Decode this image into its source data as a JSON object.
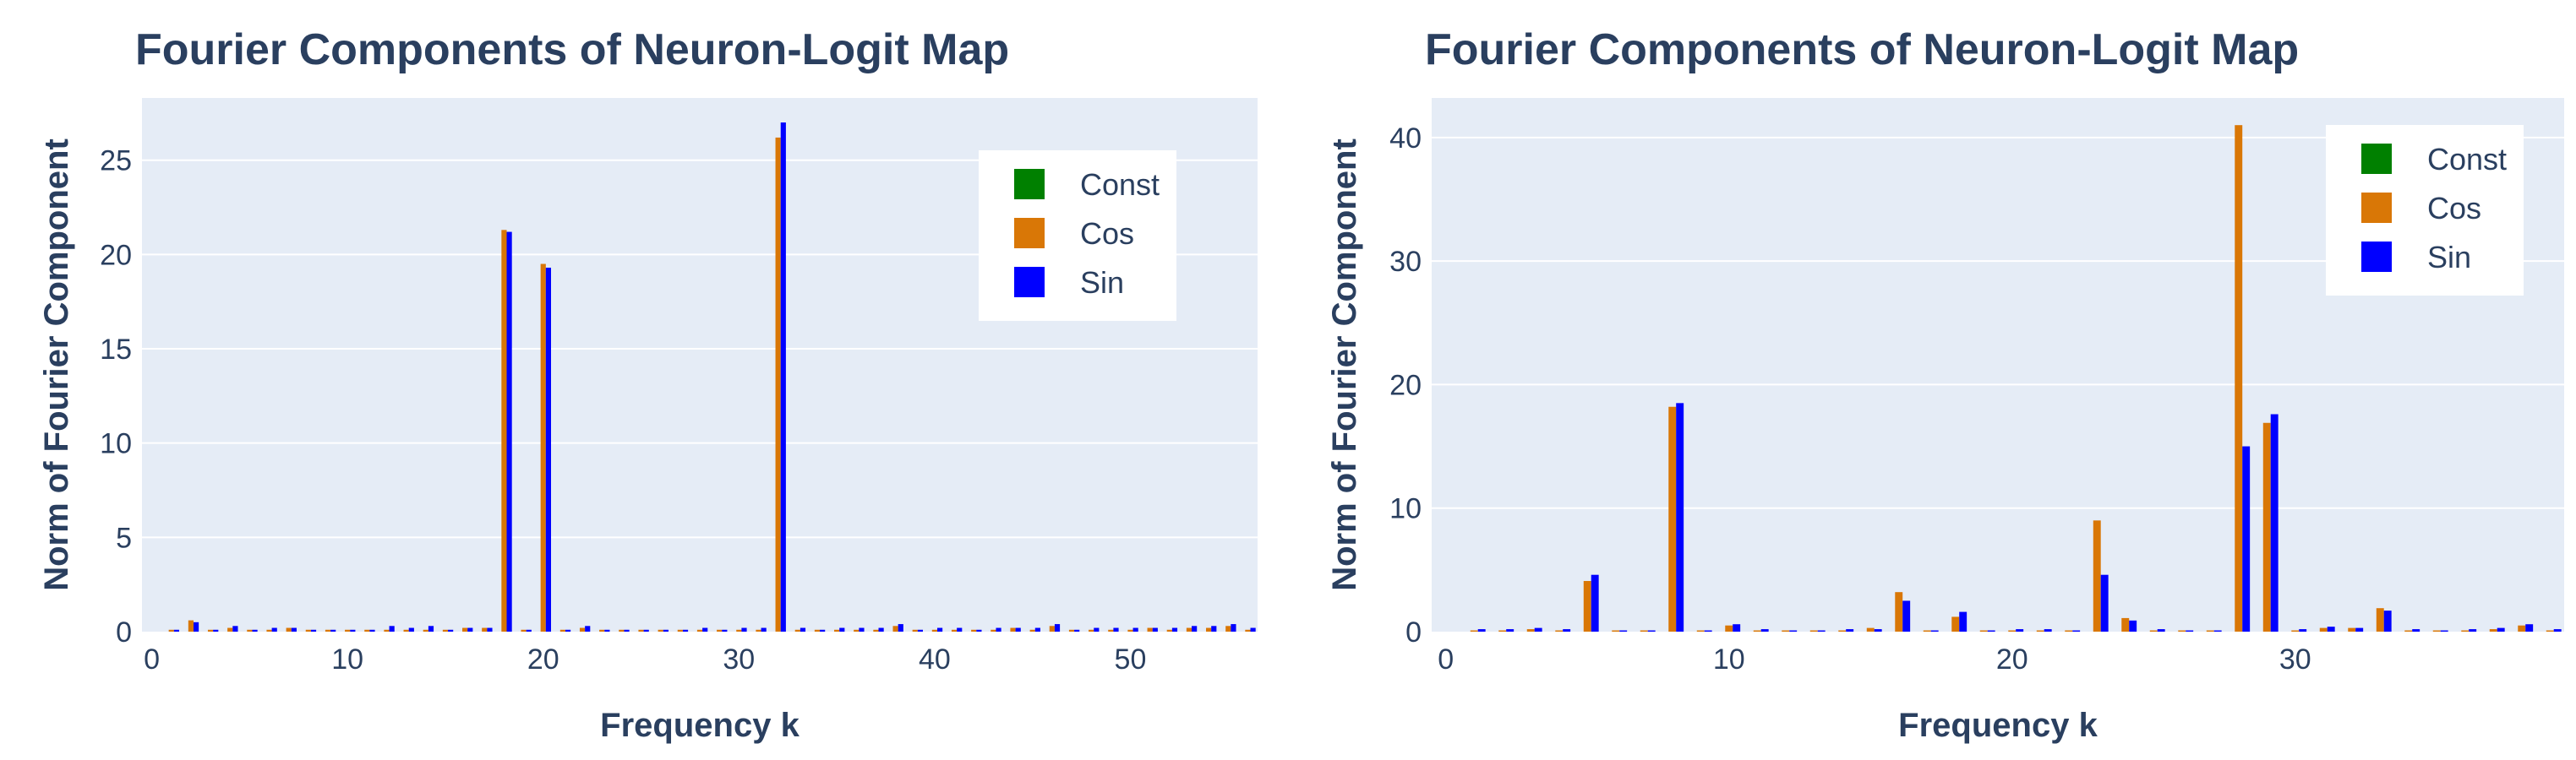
{
  "colors": {
    "const": "#008000",
    "cos": "#d97706",
    "sin": "#0000ff",
    "plot_bg": "#e5ecf6",
    "grid": "#ffffff",
    "text": "#2a3f5f"
  },
  "chart_data": [
    {
      "type": "bar",
      "title": "Fourier Components of Neuron-Logit Map",
      "xlabel": "Frequency k",
      "ylabel": "Norm of Fourier Component",
      "xlim": [
        -0.5,
        56.5
      ],
      "ylim": [
        0,
        28.3
      ],
      "xticks": [
        0,
        10,
        20,
        30,
        40,
        50
      ],
      "yticks": [
        0,
        5,
        10,
        15,
        20,
        25
      ],
      "grid": true,
      "legend_position": "top-right",
      "legend": [
        "Const",
        "Cos",
        "Sin"
      ],
      "x": [
        1,
        2,
        3,
        4,
        5,
        6,
        7,
        8,
        9,
        10,
        11,
        12,
        13,
        14,
        15,
        16,
        17,
        18,
        19,
        20,
        21,
        22,
        23,
        24,
        25,
        26,
        27,
        28,
        29,
        30,
        31,
        32,
        33,
        34,
        35,
        36,
        37,
        38,
        39,
        40,
        41,
        42,
        43,
        44,
        45,
        46,
        47,
        48,
        49,
        50,
        51,
        52,
        53,
        54,
        55,
        56
      ],
      "series": [
        {
          "name": "Const",
          "values": [
            0,
            0,
            0,
            0,
            0,
            0,
            0,
            0,
            0,
            0,
            0,
            0,
            0,
            0,
            0,
            0,
            0,
            0,
            0,
            0,
            0,
            0,
            0,
            0,
            0,
            0,
            0,
            0,
            0,
            0,
            0,
            0,
            0,
            0,
            0,
            0,
            0,
            0,
            0,
            0,
            0,
            0,
            0,
            0,
            0,
            0,
            0,
            0,
            0,
            0,
            0,
            0,
            0,
            0,
            0,
            0
          ]
        },
        {
          "name": "Cos",
          "values": [
            0.1,
            0.6,
            0.1,
            0.2,
            0.1,
            0.1,
            0.2,
            0.1,
            0.1,
            0.1,
            0.1,
            0.1,
            0.1,
            0.1,
            0.1,
            0.2,
            0.2,
            21.3,
            0.1,
            19.5,
            0.1,
            0.2,
            0.1,
            0.1,
            0.1,
            0.1,
            0.1,
            0.1,
            0.1,
            0.1,
            0.1,
            26.2,
            0.1,
            0.1,
            0.1,
            0.1,
            0.1,
            0.3,
            0.1,
            0.1,
            0.1,
            0.1,
            0.1,
            0.2,
            0.1,
            0.3,
            0.1,
            0.1,
            0.1,
            0.1,
            0.2,
            0.1,
            0.2,
            0.2,
            0.3,
            0.1
          ]
        },
        {
          "name": "Sin",
          "values": [
            0.1,
            0.5,
            0.1,
            0.3,
            0.1,
            0.2,
            0.2,
            0.1,
            0.1,
            0.1,
            0.1,
            0.3,
            0.2,
            0.3,
            0.1,
            0.2,
            0.2,
            21.2,
            0.1,
            19.3,
            0.1,
            0.3,
            0.1,
            0.1,
            0.1,
            0.1,
            0.1,
            0.2,
            0.1,
            0.2,
            0.2,
            27.0,
            0.2,
            0.1,
            0.2,
            0.2,
            0.2,
            0.4,
            0.1,
            0.2,
            0.2,
            0.1,
            0.2,
            0.2,
            0.2,
            0.4,
            0.1,
            0.2,
            0.2,
            0.2,
            0.2,
            0.2,
            0.3,
            0.3,
            0.4,
            0.2
          ]
        }
      ]
    },
    {
      "type": "bar",
      "title": "Fourier Components of Neuron-Logit Map",
      "xlabel": "Frequency k",
      "ylabel": "Norm of Fourier Component",
      "xlim": [
        -0.5,
        39.5
      ],
      "ylim": [
        0,
        43.2
      ],
      "xticks": [
        0,
        10,
        20,
        30
      ],
      "yticks": [
        0,
        10,
        20,
        30,
        40
      ],
      "grid": true,
      "legend_position": "top-right",
      "legend": [
        "Const",
        "Cos",
        "Sin"
      ],
      "x": [
        1,
        2,
        3,
        4,
        5,
        6,
        7,
        8,
        9,
        10,
        11,
        12,
        13,
        14,
        15,
        16,
        17,
        18,
        19,
        20,
        21,
        22,
        23,
        24,
        25,
        26,
        27,
        28,
        29,
        30,
        31,
        32,
        33,
        34,
        35,
        36,
        37,
        38,
        39
      ],
      "series": [
        {
          "name": "Const",
          "values": [
            0,
            0,
            0,
            0,
            0,
            0,
            0,
            0,
            0,
            0,
            0,
            0,
            0,
            0,
            0,
            0,
            0,
            0,
            0,
            0,
            0,
            0,
            0,
            0,
            0,
            0,
            0,
            0,
            0,
            0,
            0,
            0,
            0,
            0,
            0,
            0,
            0,
            0,
            0
          ]
        },
        {
          "name": "Cos",
          "values": [
            0.1,
            0.1,
            0.2,
            0.1,
            4.1,
            0.1,
            0.1,
            18.2,
            0.1,
            0.5,
            0.1,
            0.1,
            0.1,
            0.1,
            0.3,
            3.2,
            0.1,
            1.2,
            0.1,
            0.1,
            0.1,
            0.1,
            9.0,
            1.1,
            0.1,
            0.1,
            0.1,
            41.0,
            16.9,
            0.1,
            0.3,
            0.3,
            1.9,
            0.1,
            0.1,
            0.1,
            0.2,
            0.5,
            0.1
          ]
        },
        {
          "name": "Sin",
          "values": [
            0.2,
            0.2,
            0.3,
            0.2,
            4.6,
            0.1,
            0.1,
            18.5,
            0.1,
            0.6,
            0.2,
            0.1,
            0.1,
            0.2,
            0.2,
            2.5,
            0.1,
            1.6,
            0.1,
            0.2,
            0.2,
            0.1,
            4.6,
            0.9,
            0.2,
            0.1,
            0.1,
            15.0,
            17.6,
            0.2,
            0.4,
            0.3,
            1.7,
            0.2,
            0.1,
            0.2,
            0.3,
            0.6,
            0.2
          ]
        }
      ]
    }
  ]
}
